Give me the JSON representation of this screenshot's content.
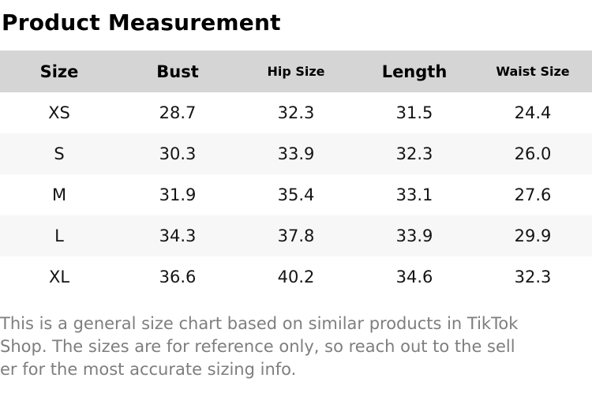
{
  "page": {
    "title": "Product Measurement"
  },
  "table": {
    "columns": [
      {
        "label": "Size"
      },
      {
        "label": "Bust"
      },
      {
        "label": "Hip Size"
      },
      {
        "label": "Length"
      },
      {
        "label": "Waist Size"
      }
    ],
    "rows": [
      {
        "cells": [
          "XS",
          "28.7",
          "32.3",
          "31.5",
          "24.4"
        ]
      },
      {
        "cells": [
          "S",
          "30.3",
          "33.9",
          "32.3",
          "26.0"
        ]
      },
      {
        "cells": [
          "M",
          "31.9",
          "35.4",
          "33.1",
          "27.6"
        ]
      },
      {
        "cells": [
          "L",
          "34.3",
          "37.8",
          "33.9",
          "29.9"
        ]
      },
      {
        "cells": [
          "XL",
          "36.6",
          "40.2",
          "34.6",
          "32.3"
        ]
      }
    ]
  },
  "footer": {
    "lines": [
      "This is a general size chart based on similar products in TikTok",
      "Shop. The sizes are for reference only, so reach out to the sell",
      "er for the most accurate sizing info."
    ]
  },
  "colors": {
    "header_bg": "#d5d5d5",
    "row_alt_bg": "#f7f7f7",
    "title_text": "#000000",
    "data_text": "#141414",
    "footer_text": "#7e7e7e"
  }
}
